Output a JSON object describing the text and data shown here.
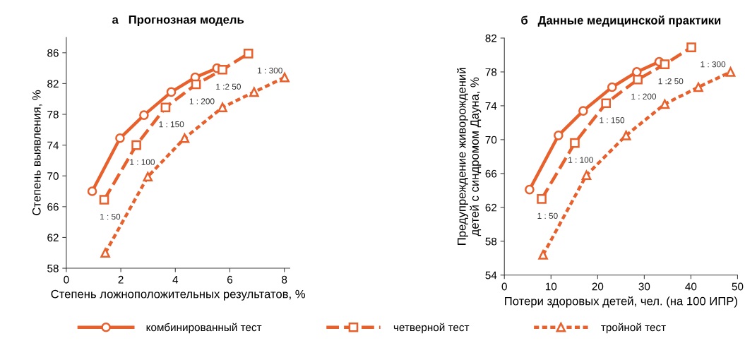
{
  "chart_data": [
    {
      "type": "line",
      "title": "а   Прогнозная модель",
      "xlabel": "Степень ложноположительных результатов, %",
      "ylabel": "Степень выявления, %",
      "xlim": [
        0,
        8.2
      ],
      "xticks": [
        0,
        2,
        4,
        6,
        8
      ],
      "ylim": [
        58,
        88
      ],
      "yticks": [
        58,
        62,
        66,
        70,
        74,
        78,
        82,
        86
      ],
      "grid": false,
      "legend": "bottom",
      "series": [
        {
          "name": "комбинированный тест",
          "color": "#e8602c",
          "marker": "circle",
          "line_style": "solid",
          "x": [
            0.95,
            1.97,
            2.85,
            3.85,
            4.73,
            5.53
          ],
          "values": [
            68.0,
            74.9,
            77.9,
            80.9,
            82.8,
            84.0
          ]
        },
        {
          "name": "четверной тест",
          "color": "#e8602c",
          "marker": "square",
          "line_style": "dashed",
          "x": [
            1.39,
            2.57,
            3.64,
            4.76,
            5.73,
            6.68
          ],
          "values": [
            66.9,
            74.0,
            78.9,
            81.9,
            83.8,
            85.9
          ]
        },
        {
          "name": "тройной тест",
          "color": "#e8602c",
          "marker": "triangle",
          "line_style": "dotted",
          "x": [
            1.43,
            2.99,
            4.34,
            5.73,
            6.89,
            8.01
          ],
          "values": [
            60.0,
            69.9,
            74.9,
            78.9,
            80.9,
            82.8
          ]
        }
      ],
      "annotations": [
        "1 : 50",
        "1 : 100",
        "1 : 150",
        "1 : 200",
        "1 :2 50",
        "1 : 300"
      ]
    },
    {
      "type": "line",
      "title": "б   Данные медицинской практики",
      "xlabel": "Потери здоровых детей, чел. (на 100 ИПР)",
      "ylabel": "Предупреждение живорождений\nдетей с синдромом Дауна, %",
      "xlim": [
        0,
        50
      ],
      "xticks": [
        0,
        10,
        20,
        30,
        40,
        50
      ],
      "ylim": [
        54,
        82
      ],
      "yticks": [
        54,
        58,
        62,
        66,
        70,
        74,
        78,
        82
      ],
      "grid": false,
      "series": [
        {
          "color": "#e8602c",
          "marker": "circle",
          "line_style": "solid",
          "x": [
            5.4,
            11.6,
            16.9,
            23.1,
            28.4,
            33.2
          ],
          "values": [
            64.1,
            70.5,
            73.4,
            76.2,
            78.0,
            79.2
          ]
        },
        {
          "color": "#e8602c",
          "marker": "square",
          "line_style": "dashed",
          "x": [
            8.0,
            15.1,
            21.8,
            28.6,
            34.4,
            40.1
          ],
          "values": [
            63.0,
            69.6,
            74.3,
            77.1,
            78.9,
            80.9
          ]
        },
        {
          "color": "#e8602c",
          "marker": "triangle",
          "line_style": "dotted",
          "x": [
            8.3,
            17.6,
            26.1,
            34.4,
            41.6,
            48.5
          ],
          "values": [
            56.4,
            65.8,
            70.5,
            74.2,
            76.2,
            78.0
          ]
        }
      ],
      "annotations": [
        "1 : 50",
        "1 : 100",
        "1 : 150",
        "1 : 200",
        "1 :2 50",
        "1 : 300"
      ]
    }
  ]
}
